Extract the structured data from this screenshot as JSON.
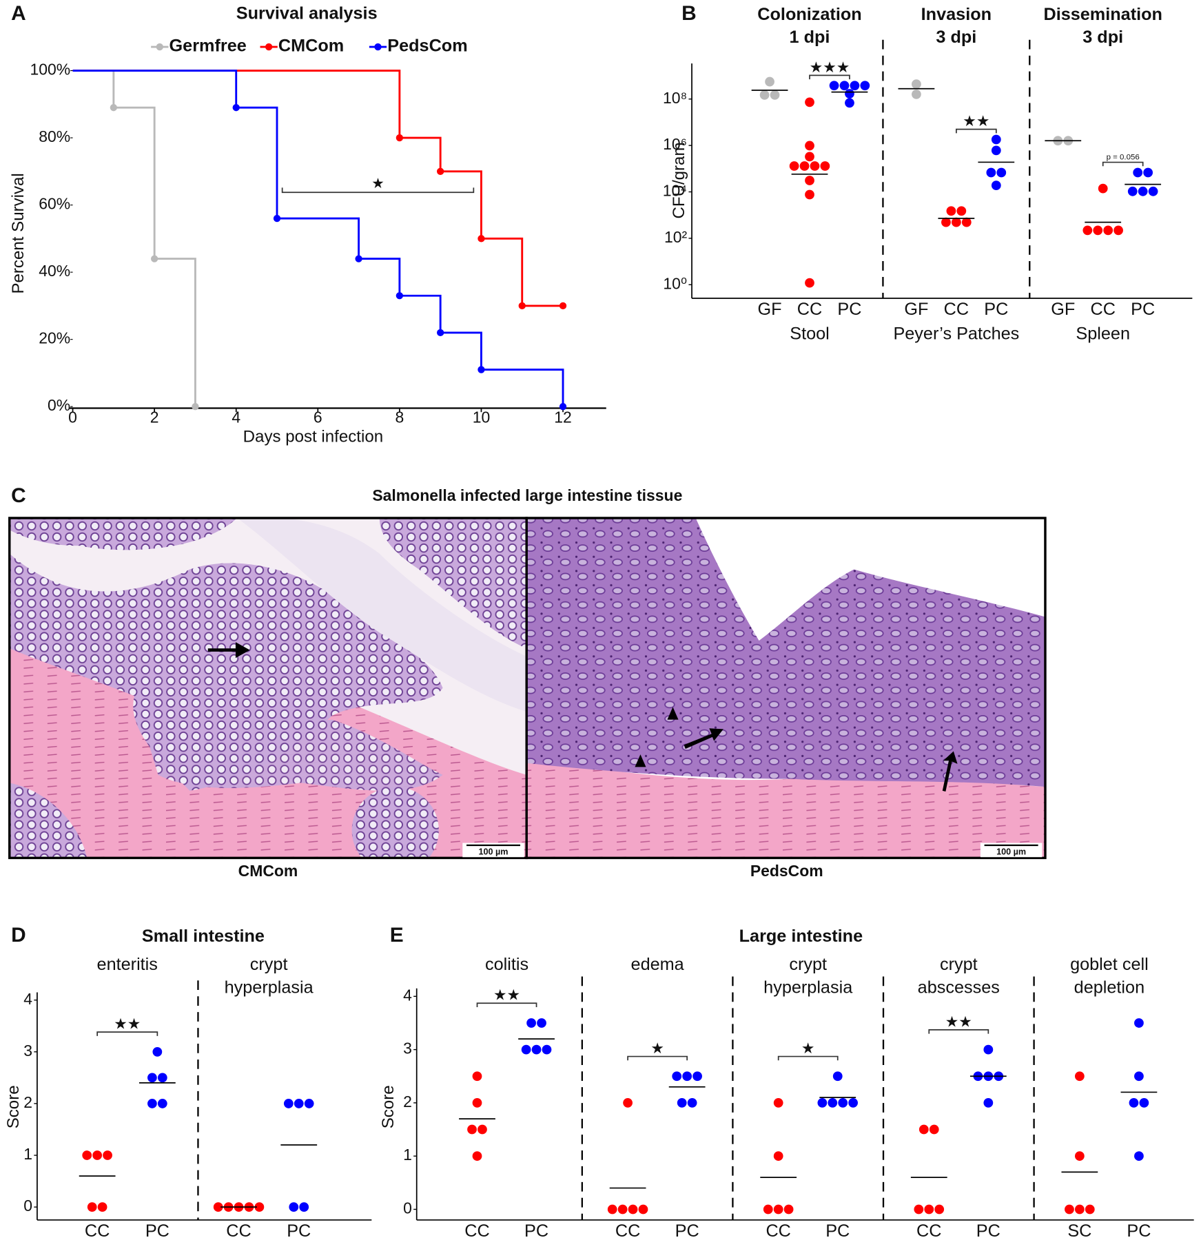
{
  "chart_data": [
    {
      "type": "step",
      "panel": "A",
      "title": "Survival analysis",
      "xlabel": "Days post infection",
      "ylabel": "Percent Survival",
      "xlim": [
        0,
        13
      ],
      "xticks": [
        0,
        2,
        4,
        6,
        8,
        10,
        12
      ],
      "ylim": [
        0,
        100
      ],
      "yticks": [
        {
          "value": 0,
          "label": "0%"
        },
        {
          "value": 20,
          "label": "20%"
        },
        {
          "value": 40,
          "label": "40%"
        },
        {
          "value": 60,
          "label": "60%"
        },
        {
          "value": 80,
          "label": "80%"
        },
        {
          "value": 100,
          "label": "100%"
        }
      ],
      "legend": "top",
      "significance": "★",
      "series": [
        {
          "name": "Germfree",
          "color": "#b9b9b9",
          "x": [
            0,
            1,
            2,
            3
          ],
          "values": [
            100,
            89,
            44,
            0
          ]
        },
        {
          "name": "CMCom",
          "color": "#ff0000",
          "x": [
            0,
            8,
            9,
            10,
            11,
            12
          ],
          "values": [
            100,
            80,
            70,
            50,
            30,
            30
          ]
        },
        {
          "name": "PedsCom",
          "color": "#0000ff",
          "x": [
            0,
            4,
            5,
            7,
            8,
            9,
            10,
            12
          ],
          "values": [
            100,
            89,
            56,
            44,
            33,
            22,
            11,
            0
          ]
        }
      ]
    },
    {
      "type": "dot",
      "panel": "B",
      "ylabel": "CFU/gram",
      "log_scale": true,
      "ylim": [
        0.26,
        3400000000
      ],
      "yticks": [
        {
          "value": 1,
          "label": "10⁰"
        },
        {
          "value": 100,
          "label": "10²"
        },
        {
          "value": 10000,
          "label": "10⁴"
        },
        {
          "value": 1000000,
          "label": "10⁶"
        },
        {
          "value": 100000000,
          "label": "10⁸"
        }
      ],
      "colors": [
        "#b9b9b9",
        "#ff0000",
        "#0000ff"
      ],
      "groups": [
        {
          "title": [
            "Colonization",
            "1 dpi"
          ],
          "name": "Stool",
          "categories": [
            "GF",
            "CC",
            "PC"
          ],
          "values": [
            [
              560000000,
              150000000,
              150000000
            ],
            [
              73000000,
              980000,
              330000,
              130000,
              130000,
              130000,
              130000,
              31000,
              7600,
              1.2
            ],
            [
              380000000,
              380000000,
              380000000,
              380000000,
              170000000,
              68000000
            ]
          ],
          "means": [
            240000000,
            58000,
            200000000
          ],
          "significance": "★★★"
        },
        {
          "title": [
            "Invasion",
            "3 dpi"
          ],
          "name": "Peyer’s Patches",
          "categories": [
            "GF",
            "CC",
            "PC"
          ],
          "values": [
            [
              440000000,
              160000000
            ],
            [
              1500,
              1500,
              490,
              490,
              490
            ],
            [
              1800000,
              610000,
              68000,
              68000,
              19000
            ]
          ],
          "means": [
            280000000,
            720,
            190000
          ],
          "significance": "★★"
        },
        {
          "title": [
            "Dissemination",
            "3 dpi"
          ],
          "name": "Spleen",
          "categories": [
            "GF",
            "CC",
            "PC"
          ],
          "values": [
            [
              1600000,
              1600000
            ],
            [
              14000,
              220,
              220,
              220,
              220
            ],
            [
              68000,
              68000,
              10500,
              10500,
              10500
            ]
          ],
          "means": [
            1600000,
            490,
            21000
          ],
          "significance": "p = 0.056"
        }
      ]
    },
    {
      "type": "dot",
      "panel": "D",
      "title": "Small intestine",
      "ylabel": "Score",
      "log_scale": false,
      "ylim": [
        -0.25,
        4.15
      ],
      "yticks": [
        0,
        1,
        2,
        3,
        4
      ],
      "colors": [
        "#ff0000",
        "#0000ff"
      ],
      "groups": [
        {
          "title": [
            "enteritis"
          ],
          "categories": [
            "CC",
            "PC"
          ],
          "values": [
            [
              1,
              1,
              1,
              0,
              0
            ],
            [
              3,
              2.5,
              2.5,
              2,
              2
            ]
          ],
          "means": [
            0.6,
            2.4
          ],
          "significance": "★★"
        },
        {
          "title": [
            "crypt",
            "hyperplasia"
          ],
          "categories": [
            "CC",
            "PC"
          ],
          "values": [
            [
              0,
              0,
              0,
              0,
              0
            ],
            [
              2,
              2,
              2,
              0,
              0
            ]
          ],
          "means": [
            0,
            1.2
          ]
        }
      ]
    },
    {
      "type": "dot",
      "panel": "E",
      "title": "Large intestine",
      "ylabel": "Score",
      "log_scale": false,
      "ylim": [
        -0.2,
        4.15
      ],
      "yticks": [
        0,
        1,
        2,
        3,
        4
      ],
      "colors": [
        "#ff0000",
        "#0000ff"
      ],
      "groups": [
        {
          "title": [
            "colitis"
          ],
          "categories": [
            "CC",
            "PC"
          ],
          "values": [
            [
              2.5,
              2,
              1.5,
              1.5,
              1
            ],
            [
              3.5,
              3.5,
              3,
              3,
              3
            ]
          ],
          "means": [
            1.7,
            3.2
          ],
          "significance": "★★"
        },
        {
          "title": [
            "edema"
          ],
          "categories": [
            "CC",
            "PC"
          ],
          "values": [
            [
              2,
              0,
              0,
              0,
              0
            ],
            [
              2.5,
              2.5,
              2.5,
              2,
              2
            ]
          ],
          "means": [
            0.4,
            2.3
          ],
          "significance": "★"
        },
        {
          "title": [
            "crypt",
            "hyperplasia"
          ],
          "categories": [
            "CC",
            "PC"
          ],
          "values": [
            [
              2,
              1,
              0,
              0,
              0
            ],
            [
              2.5,
              2,
              2,
              2,
              2
            ]
          ],
          "means": [
            0.6,
            2.1
          ],
          "significance": "★"
        },
        {
          "title": [
            "crypt",
            "abscesses"
          ],
          "categories": [
            "CC",
            "PC"
          ],
          "values": [
            [
              1.5,
              1.5,
              0,
              0,
              0
            ],
            [
              3,
              2.5,
              2.5,
              2.5,
              2
            ]
          ],
          "means": [
            0.6,
            2.5
          ],
          "significance": "★★"
        },
        {
          "title": [
            "goblet cell",
            "depletion"
          ],
          "categories": [
            "SC",
            "PC"
          ],
          "values": [
            [
              2.5,
              1,
              0,
              0,
              0
            ],
            [
              3.5,
              2.5,
              2,
              2,
              1
            ]
          ],
          "means": [
            0.7,
            2.2
          ]
        }
      ]
    }
  ],
  "histology": {
    "panel": "C",
    "title": "Salmonella infected large intestine tissue",
    "images": [
      {
        "label": "CMCom",
        "scale_bar": "100 µm"
      },
      {
        "label": "PedsCom",
        "scale_bar": "100 µm"
      }
    ]
  }
}
